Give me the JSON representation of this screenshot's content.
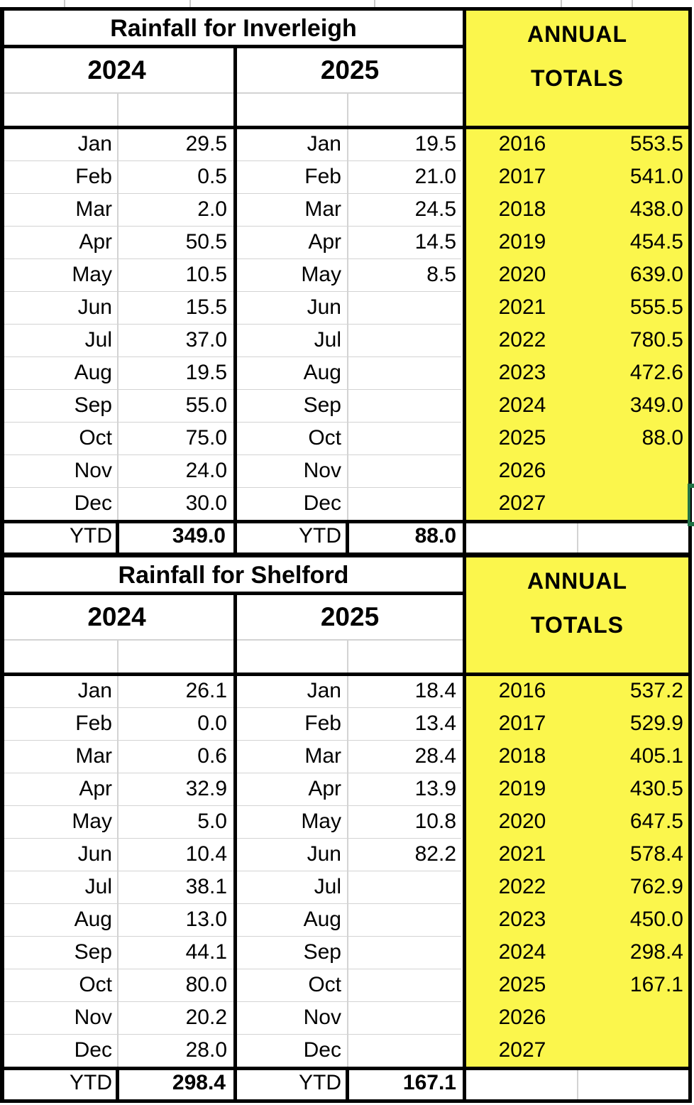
{
  "colors": {
    "highlight_yellow": "#FBF64C",
    "selection_green": "#217346",
    "gridline_gray": "#D3D3D3",
    "border_black": "#000000"
  },
  "sections": [
    {
      "title": "Rainfall for Inverleigh",
      "annual_label_top": "ANNUAL",
      "annual_label_bottom": "TOTALS",
      "year_columns": [
        "2024",
        "2025"
      ],
      "ytd_label": "YTD",
      "months": [
        "Jan",
        "Feb",
        "Mar",
        "Apr",
        "May",
        "Jun",
        "Jul",
        "Aug",
        "Sep",
        "Oct",
        "Nov",
        "Dec"
      ],
      "values_2024": [
        "29.5",
        "0.5",
        "2.0",
        "50.5",
        "10.5",
        "15.5",
        "37.0",
        "19.5",
        "55.0",
        "75.0",
        "24.0",
        "30.0"
      ],
      "values_2025": [
        "19.5",
        "21.0",
        "24.5",
        "14.5",
        "8.5",
        "",
        "",
        "",
        "",
        "",
        "",
        ""
      ],
      "ytd_2024": "349.0",
      "ytd_2025": "88.0",
      "annual": [
        {
          "year": "2016",
          "value": "553.5"
        },
        {
          "year": "2017",
          "value": "541.0"
        },
        {
          "year": "2018",
          "value": "438.0"
        },
        {
          "year": "2019",
          "value": "454.5"
        },
        {
          "year": "2020",
          "value": "639.0"
        },
        {
          "year": "2021",
          "value": "555.5"
        },
        {
          "year": "2022",
          "value": "780.5"
        },
        {
          "year": "2023",
          "value": "472.6"
        },
        {
          "year": "2024",
          "value": "349.0"
        },
        {
          "year": "2025",
          "value": "88.0"
        },
        {
          "year": "2026",
          "value": ""
        },
        {
          "year": "2027",
          "value": ""
        }
      ]
    },
    {
      "title": "Rainfall for Shelford",
      "annual_label_top": "ANNUAL",
      "annual_label_bottom": "TOTALS",
      "year_columns": [
        "2024",
        "2025"
      ],
      "ytd_label": "YTD",
      "months": [
        "Jan",
        "Feb",
        "Mar",
        "Apr",
        "May",
        "Jun",
        "Jul",
        "Aug",
        "Sep",
        "Oct",
        "Nov",
        "Dec"
      ],
      "values_2024": [
        "26.1",
        "0.0",
        "0.6",
        "32.9",
        "5.0",
        "10.4",
        "38.1",
        "13.0",
        "44.1",
        "80.0",
        "20.2",
        "28.0"
      ],
      "values_2025": [
        "18.4",
        "13.4",
        "28.4",
        "13.9",
        "10.8",
        "82.2",
        "",
        "",
        "",
        "",
        "",
        ""
      ],
      "ytd_2024": "298.4",
      "ytd_2025": "167.1",
      "annual": [
        {
          "year": "2016",
          "value": "537.2"
        },
        {
          "year": "2017",
          "value": "529.9"
        },
        {
          "year": "2018",
          "value": "405.1"
        },
        {
          "year": "2019",
          "value": "430.5"
        },
        {
          "year": "2020",
          "value": "647.5"
        },
        {
          "year": "2021",
          "value": "578.4"
        },
        {
          "year": "2022",
          "value": "762.9"
        },
        {
          "year": "2023",
          "value": "450.0"
        },
        {
          "year": "2024",
          "value": "298.4"
        },
        {
          "year": "2025",
          "value": "167.1"
        },
        {
          "year": "2026",
          "value": ""
        },
        {
          "year": "2027",
          "value": ""
        }
      ]
    }
  ]
}
